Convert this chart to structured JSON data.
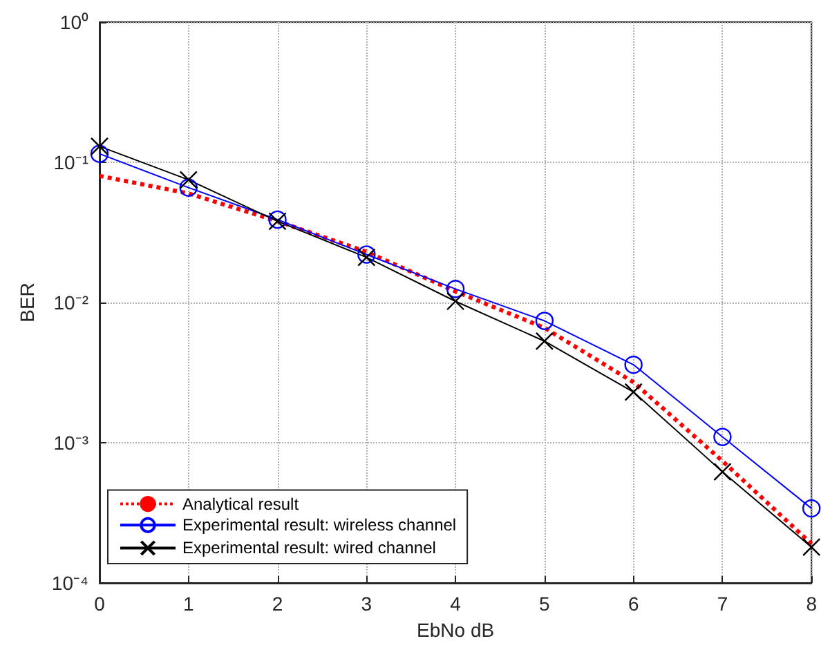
{
  "chart_data": {
    "type": "line",
    "xlabel": "EbNo dB",
    "ylabel": "BER",
    "log": "y",
    "x": [
      0,
      1,
      2,
      3,
      4,
      5,
      6,
      7,
      8
    ],
    "xlim": [
      0,
      8
    ],
    "xticks": [
      0,
      1,
      2,
      3,
      4,
      5,
      6,
      7,
      8
    ],
    "ylim": [
      0.0001,
      1
    ],
    "yticks": [
      {
        "value": 0.0001,
        "label": "10⁻⁴"
      },
      {
        "value": 0.001,
        "label": "10⁻³"
      },
      {
        "value": 0.01,
        "label": "10⁻²"
      },
      {
        "value": 0.1,
        "label": "10⁻¹"
      },
      {
        "value": 1,
        "label": "10⁰"
      }
    ],
    "grid": true,
    "legend": "bottom left",
    "series": [
      {
        "name": "Analytical result",
        "color": "#ff0000",
        "marker": "none",
        "line_style": "dotted",
        "values": [
          0.08,
          0.06,
          0.038,
          0.023,
          0.012,
          0.0066,
          0.0027,
          0.00074,
          0.00019
        ]
      },
      {
        "name": "Experimental result: wireless channel",
        "color": "#0000ff",
        "marker": "circle",
        "line_style": "solid",
        "values": [
          0.115,
          0.066,
          0.039,
          0.022,
          0.0125,
          0.0074,
          0.0036,
          0.0011,
          0.00034
        ]
      },
      {
        "name": "Experimental result: wired channel",
        "color": "#000000",
        "marker": "cross",
        "line_style": "solid",
        "values": [
          0.13,
          0.075,
          0.038,
          0.021,
          0.0102,
          0.0053,
          0.0023,
          0.00062,
          0.00018
        ]
      }
    ]
  }
}
